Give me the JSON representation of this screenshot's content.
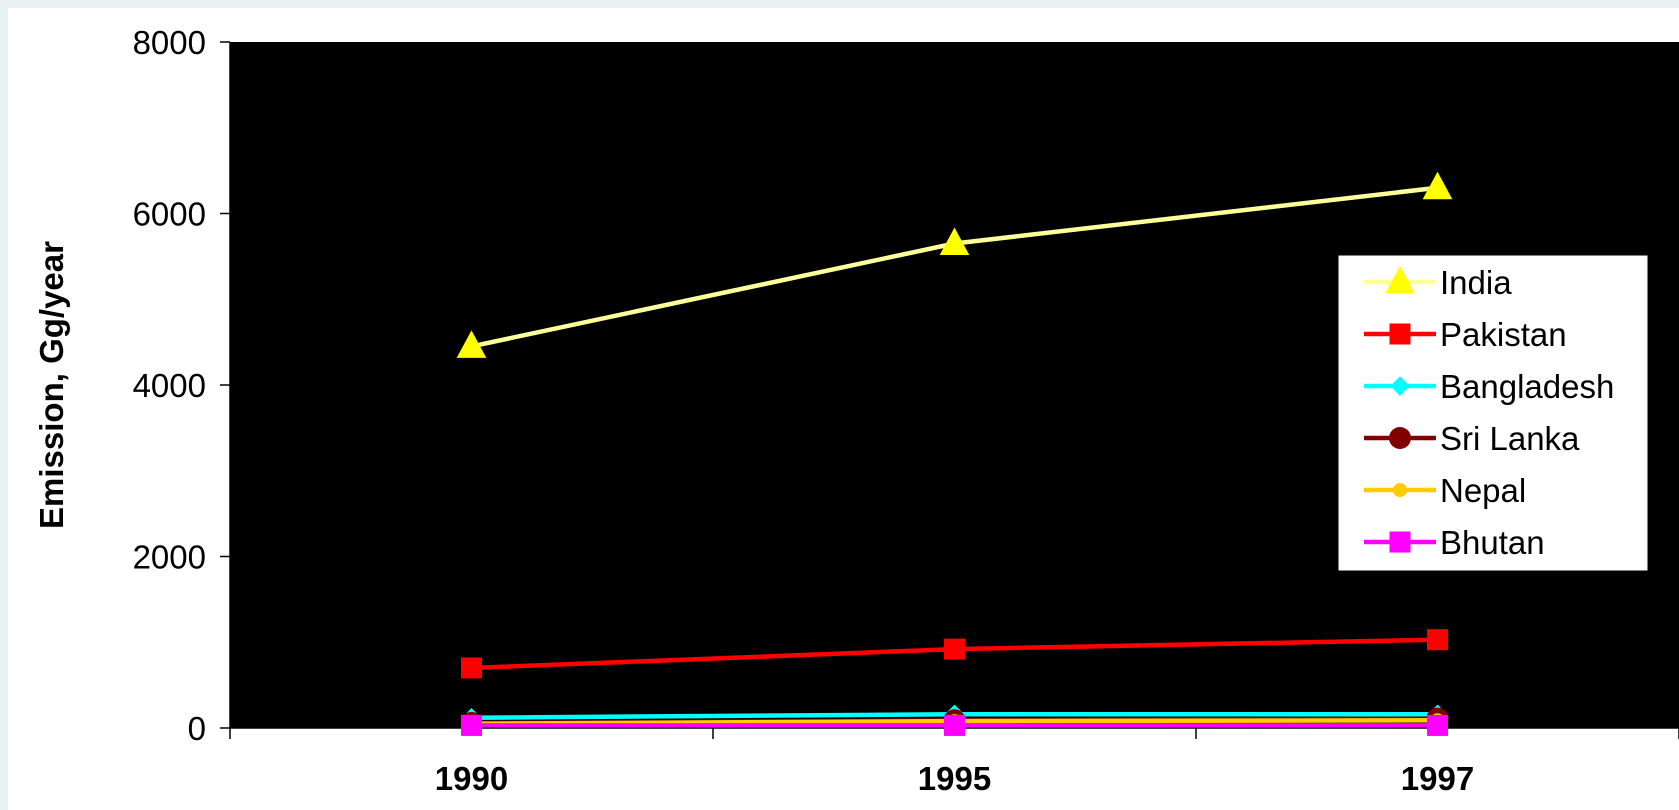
{
  "chart_data": {
    "type": "line",
    "title": "",
    "xlabel": "",
    "ylabel": "Emission, Gg/year",
    "categories": [
      "1990",
      "1995",
      "1997"
    ],
    "ylim": [
      0,
      8000
    ],
    "yticks": [
      0,
      2000,
      4000,
      6000,
      8000
    ],
    "grid": false,
    "plot_background": "#000000",
    "legend_position": "right",
    "series": [
      {
        "name": "India",
        "values": [
          4450,
          5650,
          6300
        ],
        "color": "#ffff99",
        "marker_color": "#ffff00",
        "marker": "triangle"
      },
      {
        "name": "Pakistan",
        "values": [
          700,
          920,
          1030
        ],
        "color": "#ff0000",
        "marker_color": "#ff0000",
        "marker": "square"
      },
      {
        "name": "Bangladesh",
        "values": [
          120,
          160,
          160
        ],
        "color": "#00ffff",
        "marker_color": "#00ffff",
        "marker": "diamond"
      },
      {
        "name": "Sri Lanka",
        "values": [
          60,
          90,
          110
        ],
        "color": "#800000",
        "marker_color": "#800000",
        "marker": "circle"
      },
      {
        "name": "Nepal",
        "values": [
          50,
          80,
          90
        ],
        "color": "#ffcc00",
        "marker_color": "#ffcc00",
        "marker": "circle-small"
      },
      {
        "name": "Bhutan",
        "values": [
          30,
          30,
          30
        ],
        "color": "#ff00ff",
        "marker_color": "#ff00ff",
        "marker": "square"
      }
    ]
  }
}
